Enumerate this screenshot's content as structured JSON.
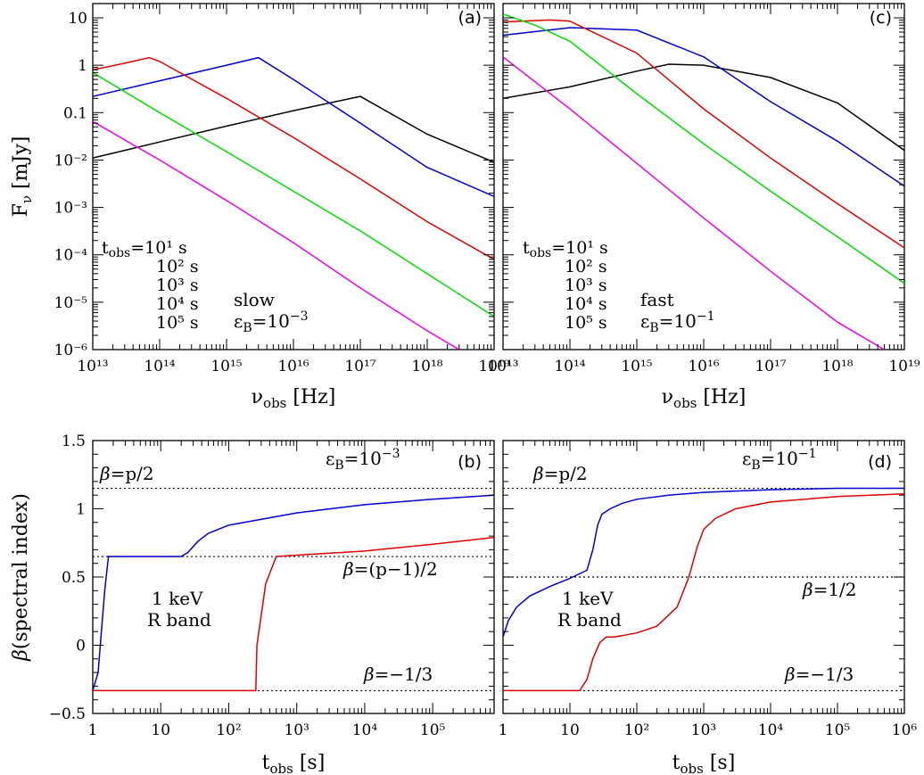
{
  "colors": {
    "black": "#000000",
    "blue": "#0000cc",
    "red": "#dd0000",
    "green": "#00dd00",
    "magenta": "#ee00ee"
  },
  "chart_data": [
    {
      "id": "a",
      "type": "line",
      "panel_label": "(a)",
      "xlabel_main": "ν",
      "xlabel_sub": "obs",
      "xlabel_unit": " [Hz]",
      "ylabel_main": "F",
      "ylabel_sub": "ν",
      "ylabel_unit": " [mJy]",
      "xscale": "log",
      "yscale": "log",
      "xlim": [
        10000000000000.0,
        1e+19
      ],
      "ylim": [
        1e-06,
        20
      ],
      "legend_title": "t",
      "legend_title_sub": "obs",
      "annotation_regime": "slow",
      "annotation_param_base": "ε",
      "annotation_param_sub": "B",
      "annotation_param_value": "=10",
      "annotation_param_exp": "−3",
      "series": [
        {
          "name": "=10¹ s",
          "color_key": "black",
          "x": [
            10000000000000.0,
            100000000000000.0,
            1000000000000000.0,
            1e+16,
            1e+17,
            1e+18,
            1e+19
          ],
          "y": [
            0.011,
            0.024,
            0.052,
            0.11,
            0.22,
            0.035,
            0.009
          ]
        },
        {
          "name": "10² s",
          "color_key": "blue",
          "x": [
            10000000000000.0,
            100000000000000.0,
            1000000000000000.0,
            3000000000000000.0,
            1e+16,
            1e+17,
            1e+18,
            1e+19
          ],
          "y": [
            0.22,
            0.47,
            1.0,
            1.45,
            0.5,
            0.06,
            0.007,
            0.0017
          ]
        },
        {
          "name": "10³ s",
          "color_key": "red",
          "x": [
            10000000000000.0,
            30000000000000.0,
            70000000000000.0,
            100000000000000.0,
            1000000000000000.0,
            1e+16,
            1e+17,
            1e+18,
            1e+19
          ],
          "y": [
            0.8,
            1.1,
            1.45,
            1.2,
            0.2,
            0.03,
            0.004,
            0.0005,
            8e-05
          ]
        },
        {
          "name": "10⁴ s",
          "color_key": "green",
          "x": [
            10000000000000.0,
            100000000000000.0,
            1000000000000000.0,
            1e+16,
            1e+17,
            1e+18,
            1e+19
          ],
          "y": [
            0.7,
            0.1,
            0.015,
            0.0022,
            0.00032,
            4e-05,
            5e-06
          ]
        },
        {
          "name": "10⁵ s",
          "color_key": "magenta",
          "x": [
            10000000000000.0,
            100000000000000.0,
            1000000000000000.0,
            1e+16,
            1e+17,
            1e+18,
            3e+18
          ],
          "y": [
            0.065,
            0.01,
            0.0014,
            0.00018,
            2e-05,
            2.5e-06,
            1e-06
          ]
        }
      ]
    },
    {
      "id": "c",
      "type": "line",
      "panel_label": "(c)",
      "xlabel_main": "ν",
      "xlabel_sub": "obs",
      "xlabel_unit": " [Hz]",
      "xscale": "log",
      "yscale": "log",
      "xlim": [
        10000000000000.0,
        1e+19
      ],
      "ylim": [
        1e-06,
        20
      ],
      "legend_title": "t",
      "legend_title_sub": "obs",
      "annotation_regime": "fast",
      "annotation_param_base": "ε",
      "annotation_param_sub": "B",
      "annotation_param_value": "=10",
      "annotation_param_exp": "−1",
      "series": [
        {
          "name": "=10¹ s",
          "color_key": "black",
          "x": [
            10000000000000.0,
            100000000000000.0,
            1000000000000000.0,
            3000000000000000.0,
            1e+16,
            1e+17,
            1e+18,
            1e+19
          ],
          "y": [
            0.2,
            0.35,
            0.75,
            1.05,
            1.0,
            0.55,
            0.16,
            0.016
          ]
        },
        {
          "name": "10² s",
          "color_key": "blue",
          "x": [
            10000000000000.0,
            100000000000000.0,
            1000000000000000.0,
            1e+16,
            1e+17,
            1e+18,
            1e+19
          ],
          "y": [
            4.3,
            6.2,
            5.5,
            1.5,
            0.17,
            0.025,
            0.0028
          ]
        },
        {
          "name": "10³ s",
          "color_key": "red",
          "x": [
            10000000000000.0,
            50000000000000.0,
            100000000000000.0,
            1000000000000000.0,
            1e+16,
            1e+17,
            1e+18,
            1e+19
          ],
          "y": [
            8.2,
            9.0,
            8.5,
            1.8,
            0.12,
            0.011,
            0.0012,
            0.00014
          ]
        },
        {
          "name": "10⁴ s",
          "color_key": "green",
          "x": [
            10000000000000.0,
            30000000000000.0,
            100000000000000.0,
            1000000000000000.0,
            1e+16,
            1e+17,
            1e+18,
            1e+19
          ],
          "y": [
            12,
            7,
            3.2,
            0.25,
            0.022,
            0.0022,
            0.00024,
            2.5e-05
          ]
        },
        {
          "name": "10⁵ s",
          "color_key": "magenta",
          "x": [
            10000000000000.0,
            100000000000000.0,
            1000000000000000.0,
            1e+16,
            1e+17,
            1e+18,
            5e+18
          ],
          "y": [
            1.5,
            0.12,
            0.0085,
            0.0006,
            4.5e-05,
            3.8e-06,
            1e-06
          ]
        }
      ]
    },
    {
      "id": "b",
      "type": "line",
      "panel_label": "(b)",
      "xlabel_main": "t",
      "xlabel_sub": "obs",
      "xlabel_unit": " [s]",
      "ylabel_main": "β",
      "ylabel_unit": "(spectral index)",
      "xscale": "log",
      "yscale": "linear",
      "xlim": [
        1,
        800000.0
      ],
      "ylim": [
        -0.5,
        1.5
      ],
      "annotation_param_base": "ε",
      "annotation_param_sub": "B",
      "annotation_param_value": "=10",
      "annotation_param_exp": "−3",
      "reference_lines": [
        {
          "y": 1.15,
          "label_base": "β",
          "label_rest": "=p/2"
        },
        {
          "y": 0.65,
          "label_base": "β",
          "label_rest": "=(p−1)/2"
        },
        {
          "y": -0.333,
          "label_base": "β",
          "label_rest": "=−1/3"
        }
      ],
      "series": [
        {
          "name": "1 keV",
          "color_key": "blue",
          "x": [
            1,
            1.2,
            1.5,
            1.7,
            20,
            25,
            35,
            50,
            100,
            1000,
            10000.0,
            100000.0,
            800000.0
          ],
          "y": [
            -0.333,
            -0.2,
            0.4,
            0.65,
            0.65,
            0.68,
            0.76,
            0.82,
            0.88,
            0.97,
            1.03,
            1.07,
            1.1
          ]
        },
        {
          "name": "R band",
          "color_key": "red",
          "x": [
            1,
            250,
            260,
            350,
            500,
            1000,
            10000.0,
            100000.0,
            800000.0
          ],
          "y": [
            -0.333,
            -0.333,
            0.0,
            0.45,
            0.65,
            0.66,
            0.69,
            0.74,
            0.79
          ]
        }
      ]
    },
    {
      "id": "d",
      "type": "line",
      "panel_label": "(d)",
      "xlabel_main": "t",
      "xlabel_sub": "obs",
      "xlabel_unit": " [s]",
      "xscale": "log",
      "yscale": "linear",
      "xlim": [
        1,
        1000000.0
      ],
      "ylim": [
        -0.5,
        1.5
      ],
      "annotation_param_base": "ε",
      "annotation_param_sub": "B",
      "annotation_param_value": "=10",
      "annotation_param_exp": "−1",
      "reference_lines": [
        {
          "y": 1.15,
          "label_base": "β",
          "label_rest": "=p/2"
        },
        {
          "y": 0.5,
          "label_base": "β",
          "label_rest": "=1/2"
        },
        {
          "y": -0.333,
          "label_base": "β",
          "label_rest": "=−1/3"
        }
      ],
      "series": [
        {
          "name": "1 keV",
          "color_key": "blue",
          "x": [
            1,
            1.2,
            1.6,
            2.5,
            5,
            10,
            18,
            22,
            26,
            30,
            40,
            60,
            100,
            300,
            1000,
            3000,
            10000.0,
            100000.0,
            1000000.0
          ],
          "y": [
            0.06,
            0.18,
            0.28,
            0.36,
            0.43,
            0.49,
            0.55,
            0.7,
            0.88,
            0.96,
            1.0,
            1.04,
            1.07,
            1.1,
            1.12,
            1.13,
            1.14,
            1.15,
            1.15
          ]
        },
        {
          "name": "R band",
          "color_key": "red",
          "x": [
            1,
            14,
            18,
            22,
            28,
            35,
            45,
            60,
            100,
            200,
            400,
            600,
            800,
            1000,
            1500,
            3000,
            10000.0,
            100000.0,
            1000000.0
          ],
          "y": [
            -0.333,
            -0.333,
            -0.25,
            -0.1,
            0.02,
            0.06,
            0.06,
            0.07,
            0.09,
            0.14,
            0.28,
            0.5,
            0.72,
            0.85,
            0.93,
            1.0,
            1.05,
            1.09,
            1.11
          ]
        }
      ]
    }
  ]
}
